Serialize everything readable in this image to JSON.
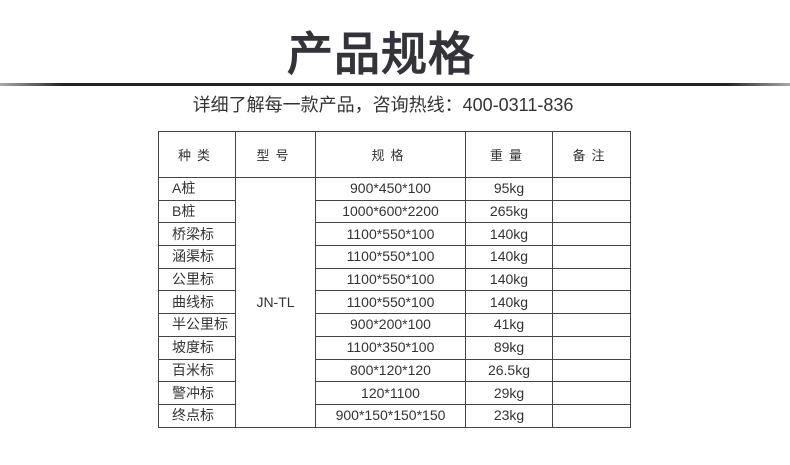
{
  "title": "产品规格",
  "subtitle": "详细了解每一款产品，咨询热线：400-0311-836",
  "table": {
    "headers": [
      "种类",
      "型号",
      "规格",
      "重量",
      "备注"
    ],
    "model": "JN-TL",
    "rows": [
      {
        "kind": "A桩",
        "spec": "900*450*100",
        "weight": "95kg",
        "note": ""
      },
      {
        "kind": "B桩",
        "spec": "1000*600*2200",
        "weight": "265kg",
        "note": ""
      },
      {
        "kind": "桥梁标",
        "spec": "1100*550*100",
        "weight": "140kg",
        "note": ""
      },
      {
        "kind": "涵渠标",
        "spec": "1100*550*100",
        "weight": "140kg",
        "note": ""
      },
      {
        "kind": "公里标",
        "spec": "1100*550*100",
        "weight": "140kg",
        "note": ""
      },
      {
        "kind": "曲线标",
        "spec": "1100*550*100",
        "weight": "140kg",
        "note": ""
      },
      {
        "kind": "半公里标",
        "spec": "900*200*100",
        "weight": "41kg",
        "note": ""
      },
      {
        "kind": "坡度标",
        "spec": "1100*350*100",
        "weight": "89kg",
        "note": ""
      },
      {
        "kind": "百米标",
        "spec": "800*120*120",
        "weight": "26.5kg",
        "note": ""
      },
      {
        "kind": "警冲标",
        "spec": "120*1100",
        "weight": "29kg",
        "note": ""
      },
      {
        "kind": "终点标",
        "spec": "900*150*150*150",
        "weight": "23kg",
        "note": ""
      }
    ]
  }
}
